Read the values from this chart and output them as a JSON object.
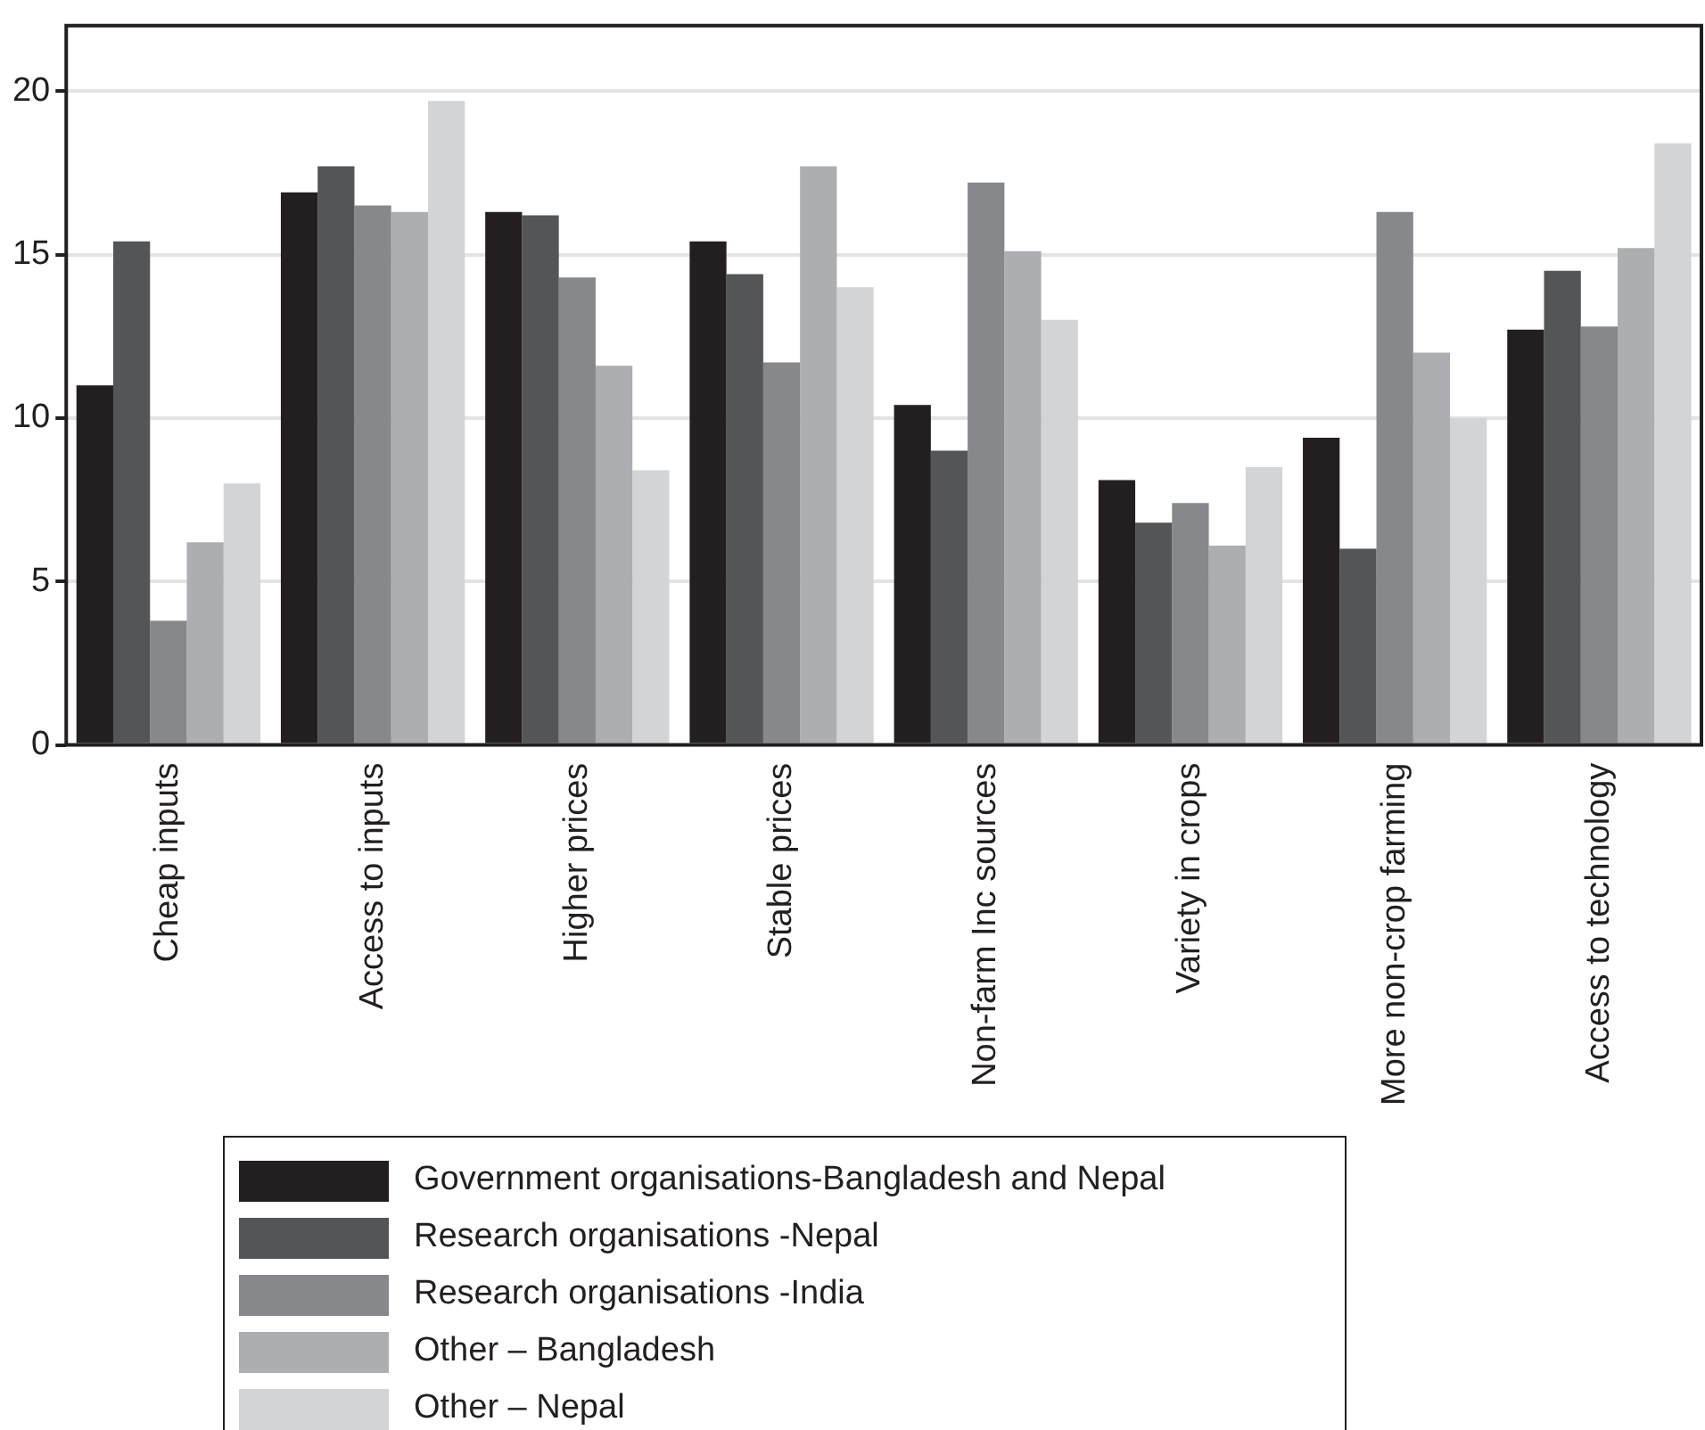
{
  "chart_data": {
    "type": "bar",
    "categories": [
      "Cheap inputs",
      "Access to inputs",
      "Higher prices",
      "Stable prices",
      "Non-farm Inc sources",
      "Variety in crops",
      "More non-crop farming",
      "Access to technology"
    ],
    "series": [
      {
        "name": "Government organisations-Bangladesh and Nepal",
        "color": "#231f20",
        "values": [
          11.0,
          16.9,
          16.3,
          15.4,
          10.4,
          8.1,
          9.4,
          12.7
        ]
      },
      {
        "name": "Research organisations -Nepal",
        "color": "#545557",
        "values": [
          15.4,
          17.7,
          16.2,
          14.4,
          9.0,
          6.8,
          6.0,
          14.5
        ]
      },
      {
        "name": "Research organisations -India",
        "color": "#87888b",
        "values": [
          3.8,
          16.5,
          14.3,
          11.7,
          17.2,
          7.4,
          16.3,
          12.8
        ]
      },
      {
        "name": "Other – Bangladesh",
        "color": "#adaeb1",
        "values": [
          6.2,
          16.3,
          11.6,
          17.7,
          15.1,
          6.1,
          12.0,
          15.2
        ]
      },
      {
        "name": "Other – Nepal",
        "color": "#d3d4d6",
        "values": [
          8.0,
          19.7,
          8.4,
          14.0,
          13.0,
          8.5,
          10.0,
          18.4
        ]
      }
    ],
    "ylim": [
      0,
      22
    ],
    "yticks": [
      0,
      5,
      10,
      15,
      20
    ],
    "grid": "y",
    "legend": "bottom"
  }
}
